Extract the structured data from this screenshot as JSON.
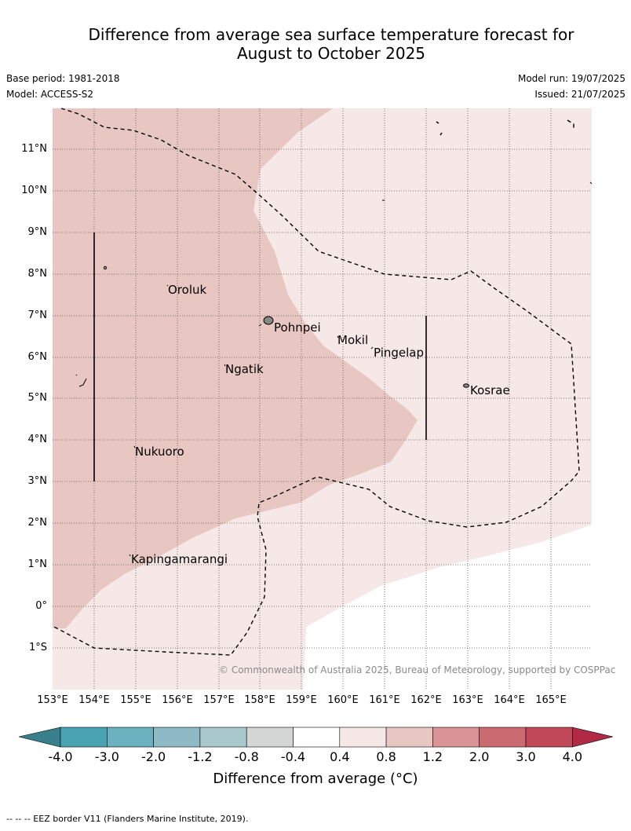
{
  "title_line1": "Difference from average sea surface temperature forecast for",
  "title_line2": "August to October 2025",
  "base_period": "Base period: 1981-2018",
  "model": "Model: ACCESS-S2",
  "model_run": "Model run: 19/07/2025",
  "issued": "Issued: 21/07/2025",
  "lon_labels": [
    "153°E",
    "154°E",
    "155°E",
    "156°E",
    "157°E",
    "158°E",
    "159°E",
    "160°E",
    "161°E",
    "162°E",
    "163°E",
    "164°E",
    "165°E"
  ],
  "lat_labels": [
    "11°N",
    "10°N",
    "9°N",
    "8°N",
    "7°N",
    "6°N",
    "5°N",
    "4°N",
    "3°N",
    "2°N",
    "1°N",
    "0°",
    "1°S"
  ],
  "places": {
    "oroluk": "Oroluk",
    "pohnpei": "Pohnpei",
    "mokil": "Mokil",
    "pingelap": "Pingelap",
    "ngatik": "Ngatik",
    "kosrae": "Kosrae",
    "nukuoro": "Nukuoro",
    "kapingamarangi": "Kapingamarangi"
  },
  "copyright": "© Commonwealth of Australia 2025, Bureau of Meteorology, supported by COSPPac",
  "colorbar": {
    "ticks": [
      "-4.0",
      "-3.0",
      "-2.0",
      "-1.2",
      "-0.8",
      "-0.4",
      "0.4",
      "0.8",
      "1.2",
      "2.0",
      "3.0",
      "4.0"
    ],
    "colors": [
      "#3a7f8c",
      "#4aa3b3",
      "#6bb1c0",
      "#8dbac5",
      "#a8c8cc",
      "#d3d6d5",
      "#ffffff",
      "#f6e8e7",
      "#e8c7c2",
      "#da9397",
      "#cc6a72",
      "#c04858",
      "#b02a45"
    ],
    "label": "Difference from average (°C)"
  },
  "footer": "--  --  -- EEZ border V11 (Flanders Marine Institute, 2019)."
}
